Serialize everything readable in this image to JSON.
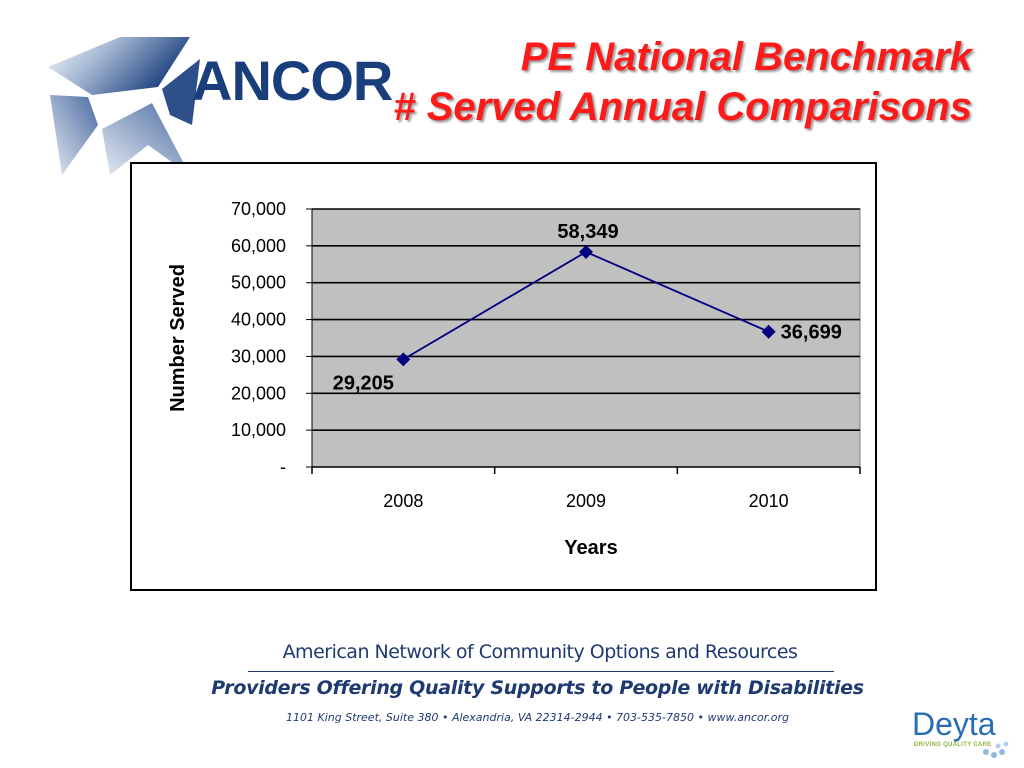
{
  "logo": {
    "text": "ANCOR",
    "icon": "star-icon"
  },
  "title": {
    "line1": "PE National Benchmark",
    "line2": "# Served Annual Comparisons"
  },
  "chart_data": {
    "type": "line",
    "categories": [
      "2008",
      "2009",
      "2010"
    ],
    "series": [
      {
        "values": [
          29205,
          58349,
          36699
        ]
      }
    ],
    "data_labels": [
      "29,205",
      "58,349",
      "36,699"
    ],
    "ylim": [
      0,
      70000
    ],
    "yticks": [
      0,
      10000,
      20000,
      30000,
      40000,
      50000,
      60000,
      70000
    ],
    "ytick_labels": [
      "-",
      "10,000",
      "20,000",
      "30,000",
      "40,000",
      "50,000",
      "60,000",
      "70,000"
    ],
    "xlabel": "Years",
    "ylabel": "Number Served",
    "grid": true,
    "plot_background": "#c0c0c0",
    "line_color": "#000080",
    "marker": "diamond"
  },
  "footer": {
    "org": "American Network of Community Options and Resources",
    "tagline": "Providers Offering Quality Supports to People with Disabilities",
    "address": "1101 King Street, Suite 380 • Alexandria, VA 22314-2944 • 703-535-7850 • www.ancor.org"
  },
  "deyta": {
    "name": "Deyta",
    "tagline": "DRIVING QUALITY CARE"
  },
  "colors": {
    "title": "#ff1a1a",
    "brand_blue": "#1a3d7c",
    "footer_text": "#1f3a70",
    "deyta_blue": "#2a6db5",
    "deyta_green": "#8db43b"
  }
}
